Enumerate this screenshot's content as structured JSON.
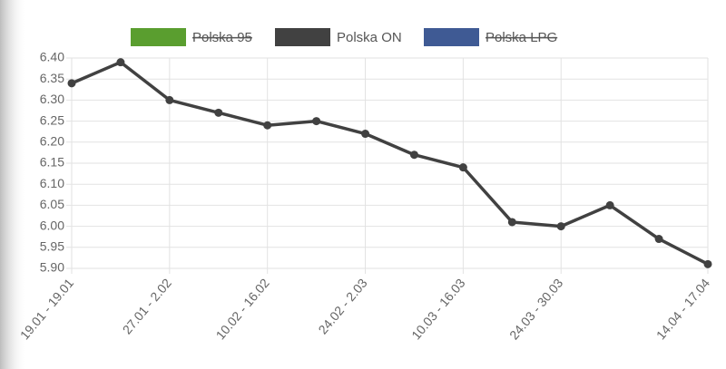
{
  "chart_data": {
    "type": "line",
    "categories": [
      "19.01 - 19.01",
      null,
      "27.01 - 2.02",
      null,
      "10.02 - 16.02",
      null,
      "24.02 - 2.03",
      null,
      "10.03 - 16.03",
      null,
      "24.03 - 30.03",
      null,
      null,
      "14.04 - 17.04"
    ],
    "series": [
      {
        "name": "Polska 95",
        "color": "#5a9e2f",
        "hidden": true,
        "values": [
          null,
          null,
          null,
          null,
          null,
          null,
          null,
          null,
          null,
          null,
          null,
          null,
          null,
          null
        ]
      },
      {
        "name": "Polska ON",
        "color": "#414141",
        "hidden": false,
        "values": [
          6.34,
          6.39,
          6.3,
          6.27,
          6.24,
          6.25,
          6.22,
          6.17,
          6.14,
          6.01,
          6.0,
          6.05,
          5.97,
          5.91
        ]
      },
      {
        "name": "Polska LPG",
        "color": "#3f5a94",
        "hidden": true,
        "values": [
          null,
          null,
          null,
          null,
          null,
          null,
          null,
          null,
          null,
          null,
          null,
          null,
          null,
          null
        ]
      }
    ],
    "ylim": [
      5.9,
      6.4
    ],
    "yticks": [
      {
        "value": 5.9,
        "label": "5.90"
      },
      5.95,
      {
        "value": 6.0,
        "label": "6.00"
      },
      6.05,
      {
        "value": 6.1,
        "label": "6.10"
      },
      6.15,
      {
        "value": 6.2,
        "label": "6.20"
      },
      6.25,
      {
        "value": 6.3,
        "label": "6.30"
      },
      6.35,
      {
        "value": 6.4,
        "label": "6.40"
      }
    ],
    "grid": true
  }
}
